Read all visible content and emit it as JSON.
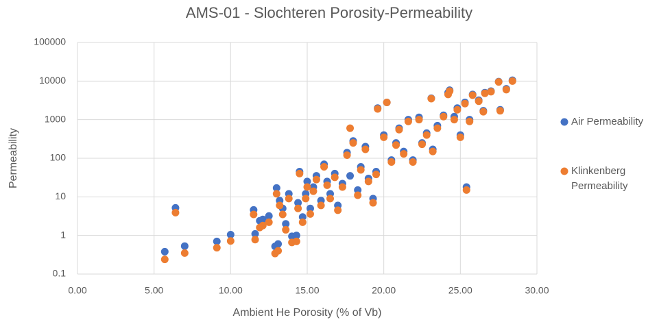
{
  "chart_data": {
    "type": "scatter",
    "title": "AMS-01 - Slochteren Porosity-Permeability",
    "x_label": "Ambient He Porosity (% of Vb)",
    "y_label": "Permeability",
    "x": [
      5.7,
      6.4,
      7.0,
      9.1,
      10.0,
      11.5,
      11.6,
      11.9,
      12.1,
      12.5,
      12.9,
      13.1,
      13.0,
      13.2,
      13.4,
      13.6,
      13.8,
      14.0,
      14.3,
      14.4,
      14.5,
      14.7,
      14.9,
      15.0,
      15.2,
      15.4,
      15.6,
      15.9,
      16.1,
      16.3,
      16.5,
      16.8,
      17.0,
      17.3,
      17.6,
      17.8,
      18.0,
      18.3,
      18.5,
      18.8,
      19.0,
      19.3,
      19.5,
      19.6,
      20.0,
      20.2,
      20.5,
      20.8,
      21.0,
      21.3,
      21.6,
      21.9,
      22.3,
      22.5,
      22.8,
      23.1,
      23.2,
      23.5,
      23.9,
      24.2,
      24.3,
      24.6,
      24.8,
      25.0,
      25.3,
      25.4,
      25.6,
      25.8,
      26.2,
      26.5,
      26.6,
      27.0,
      27.5,
      27.6,
      28.0,
      28.4
    ],
    "series": [
      {
        "name": "Air Permeability",
        "color": "#4472c4",
        "values": [
          0.38,
          5.2,
          0.53,
          0.7,
          1.05,
          4.6,
          1.1,
          2.4,
          2.6,
          3.2,
          0.52,
          0.6,
          17,
          8,
          5,
          2,
          12,
          0.95,
          1.0,
          7,
          45,
          3,
          12,
          25,
          5,
          18,
          35,
          8,
          70,
          25,
          12,
          40,
          6,
          22,
          140,
          35,
          280,
          15,
          60,
          200,
          30,
          9,
          45,
          2000,
          400,
          2800,
          90,
          250,
          600,
          150,
          1000,
          90,
          1150,
          250,
          450,
          3600,
          170,
          700,
          1300,
          5000,
          5800,
          1200,
          2000,
          400,
          2800,
          18,
          1000,
          4500,
          3200,
          1700,
          5000,
          5500,
          9700,
          1800,
          6300,
          10500
        ]
      },
      {
        "name": "Klinkenberg Permeability",
        "color": "#ed7d31",
        "values": [
          0.24,
          3.9,
          0.35,
          0.48,
          0.72,
          3.5,
          0.78,
          1.6,
          1.8,
          2.2,
          0.34,
          0.4,
          12,
          6,
          3.5,
          1.4,
          9,
          0.66,
          0.7,
          5,
          40,
          2.2,
          9,
          18,
          3.6,
          14,
          28,
          6,
          60,
          20,
          9,
          32,
          4.5,
          18,
          120,
          600,
          250,
          11,
          50,
          170,
          25,
          7,
          38,
          1900,
          350,
          2800,
          80,
          220,
          550,
          130,
          900,
          80,
          1000,
          230,
          400,
          3500,
          150,
          600,
          1200,
          4500,
          5500,
          1000,
          1800,
          350,
          2600,
          15,
          900,
          4300,
          3000,
          1600,
          4800,
          5300,
          9500,
          1700,
          6000,
          10000
        ]
      }
    ],
    "xlim": [
      0,
      30
    ],
    "xticks": [
      {
        "value": 0,
        "label": "0.00"
      },
      {
        "value": 5,
        "label": "5.00"
      },
      {
        "value": 10,
        "label": "10.00"
      },
      {
        "value": 15,
        "label": "15.00"
      },
      {
        "value": 20,
        "label": "20.00"
      },
      {
        "value": 25,
        "label": "25.00"
      },
      {
        "value": 30,
        "label": "30.00"
      }
    ],
    "ylim": [
      0.1,
      100000
    ],
    "yticks": [
      0.1,
      1,
      10,
      100,
      1000,
      10000,
      100000
    ],
    "y_scale": "log",
    "grid": true,
    "legend": "right"
  }
}
